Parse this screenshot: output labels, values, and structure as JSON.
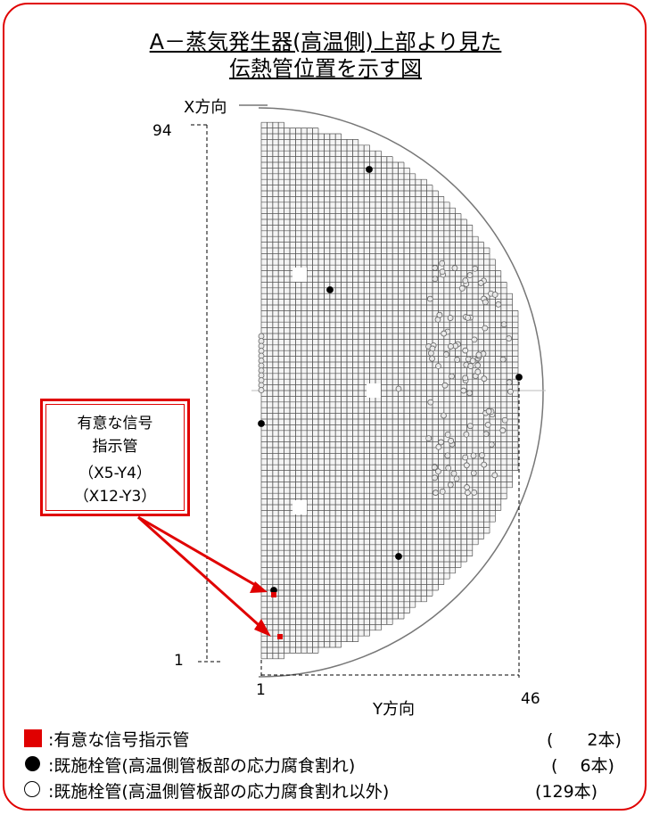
{
  "title": {
    "line1": "A－蒸気発生器(高温側)上部より見た",
    "line2": "伝熱管位置を示す図"
  },
  "axes": {
    "x_direction": "X方向",
    "y_direction": "Y方向",
    "x_max": "94",
    "x_min": "1",
    "y_min": "1",
    "y_max": "46"
  },
  "callout": {
    "line1": "有意な信号",
    "line2": "指示管",
    "line3": "（X5-Y4）",
    "line4": "（X12-Y3）"
  },
  "legend": [
    {
      "symbol": "red-square",
      "label": ":有意な信号指示管",
      "count": "(　　2本)"
    },
    {
      "symbol": "black-dot",
      "label": ":既施栓管(高温側管板部の応力腐食割れ)",
      "count": "(　 6本)"
    },
    {
      "symbol": "open-circle",
      "label": ":既施栓管(高温側管板部の応力腐食割れ以外)",
      "count": "(129本)"
    }
  ],
  "colors": {
    "frame": "#e00000",
    "signal": "#e00000",
    "grid": "#555555"
  }
}
